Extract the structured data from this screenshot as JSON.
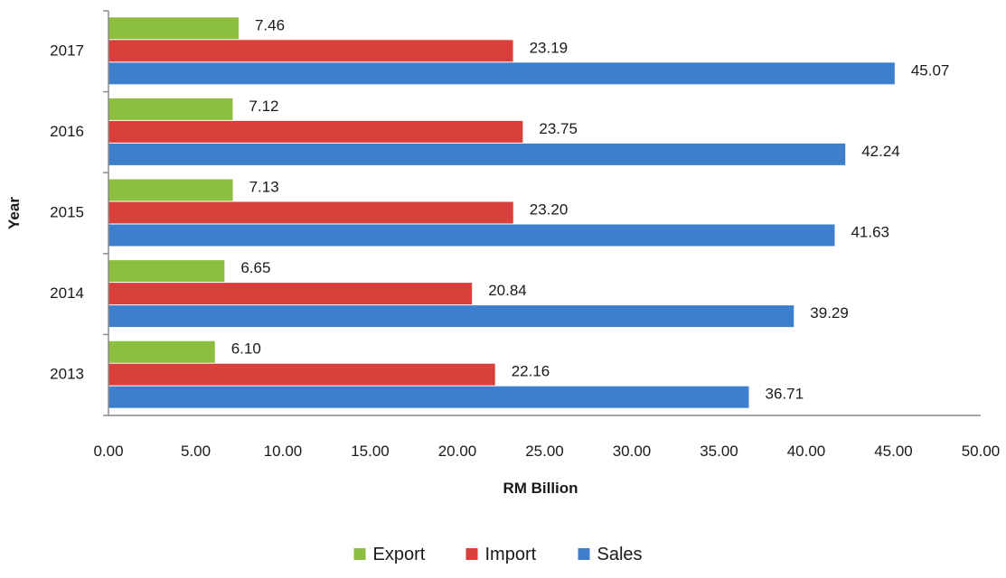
{
  "chart_data": {
    "type": "bar",
    "orientation": "horizontal",
    "categories": [
      "2013",
      "2014",
      "2015",
      "2016",
      "2017"
    ],
    "series": [
      {
        "name": "Export",
        "values": [
          6.1,
          6.65,
          7.13,
          7.12,
          7.46
        ],
        "labels": [
          "6.10",
          "6.65",
          "7.13",
          "7.12",
          "7.46"
        ],
        "color": "#8cbf3f"
      },
      {
        "name": "Import",
        "values": [
          22.16,
          20.84,
          23.2,
          23.75,
          23.19
        ],
        "labels": [
          "22.16",
          "20.84",
          "23.20",
          "23.75",
          "23.19"
        ],
        "color": "#d9403b"
      },
      {
        "name": "Sales",
        "values": [
          36.71,
          39.29,
          41.63,
          42.24,
          45.07
        ],
        "labels": [
          "36.71",
          "39.29",
          "41.63",
          "42.24",
          "45.07"
        ],
        "color": "#3d7fcc"
      }
    ],
    "xlabel": "RM Billion",
    "ylabel": "Year",
    "xlim": [
      0,
      50
    ],
    "xticks": [
      "0.00",
      "5.00",
      "10.00",
      "15.00",
      "20.00",
      "25.00",
      "30.00",
      "35.00",
      "40.00",
      "45.00",
      "50.00"
    ],
    "grid": false,
    "legend_position": "bottom"
  }
}
